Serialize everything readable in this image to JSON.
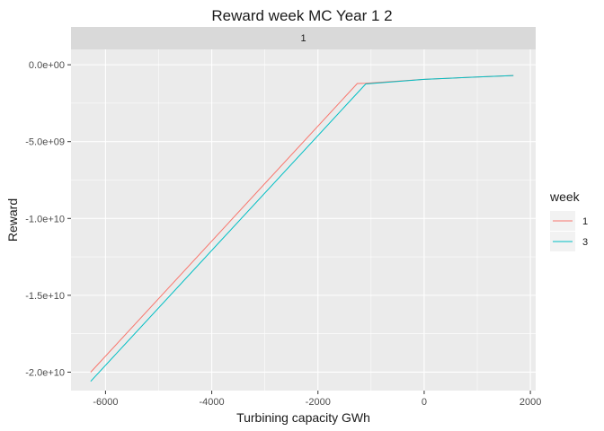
{
  "chart_data": {
    "type": "line",
    "title": "Reward week  MC Year 1 2",
    "facet_label": "1",
    "xlabel": "Turbining capacity GWh",
    "ylabel": "Reward",
    "xlim": [
      -6650,
      2100
    ],
    "ylim": [
      -21200000000.0,
      1000000000.0
    ],
    "x_ticks": [
      -6000,
      -4000,
      -2000,
      0,
      2000
    ],
    "x_tick_labels": [
      "-6000",
      "-4000",
      "-2000",
      "0",
      "2000"
    ],
    "y_ticks": [
      0,
      -5000000000.0,
      -10000000000.0,
      -15000000000.0,
      -20000000000.0
    ],
    "y_tick_labels": [
      "0.0e+00",
      "-5.0e+09",
      "-1.0e+10",
      "-1.5e+10",
      "-2.0e+10"
    ],
    "grid": true,
    "legend_title": "week",
    "legend_position": "right",
    "series": [
      {
        "name": "1",
        "color": "#F8766D",
        "x": [
          -6280,
          -1260,
          -1100,
          0,
          1000,
          1680
        ],
        "y": [
          -20000000000.0,
          -1220000000.0,
          -1200000000.0,
          -950000000.0,
          -800000000.0,
          -700000000.0
        ]
      },
      {
        "name": "3",
        "color": "#00BFC4",
        "x": [
          -6280,
          -1100,
          0,
          1000,
          1680
        ],
        "y": [
          -20600000000.0,
          -1250000000.0,
          -950000000.0,
          -800000000.0,
          -700000000.0
        ]
      }
    ]
  }
}
